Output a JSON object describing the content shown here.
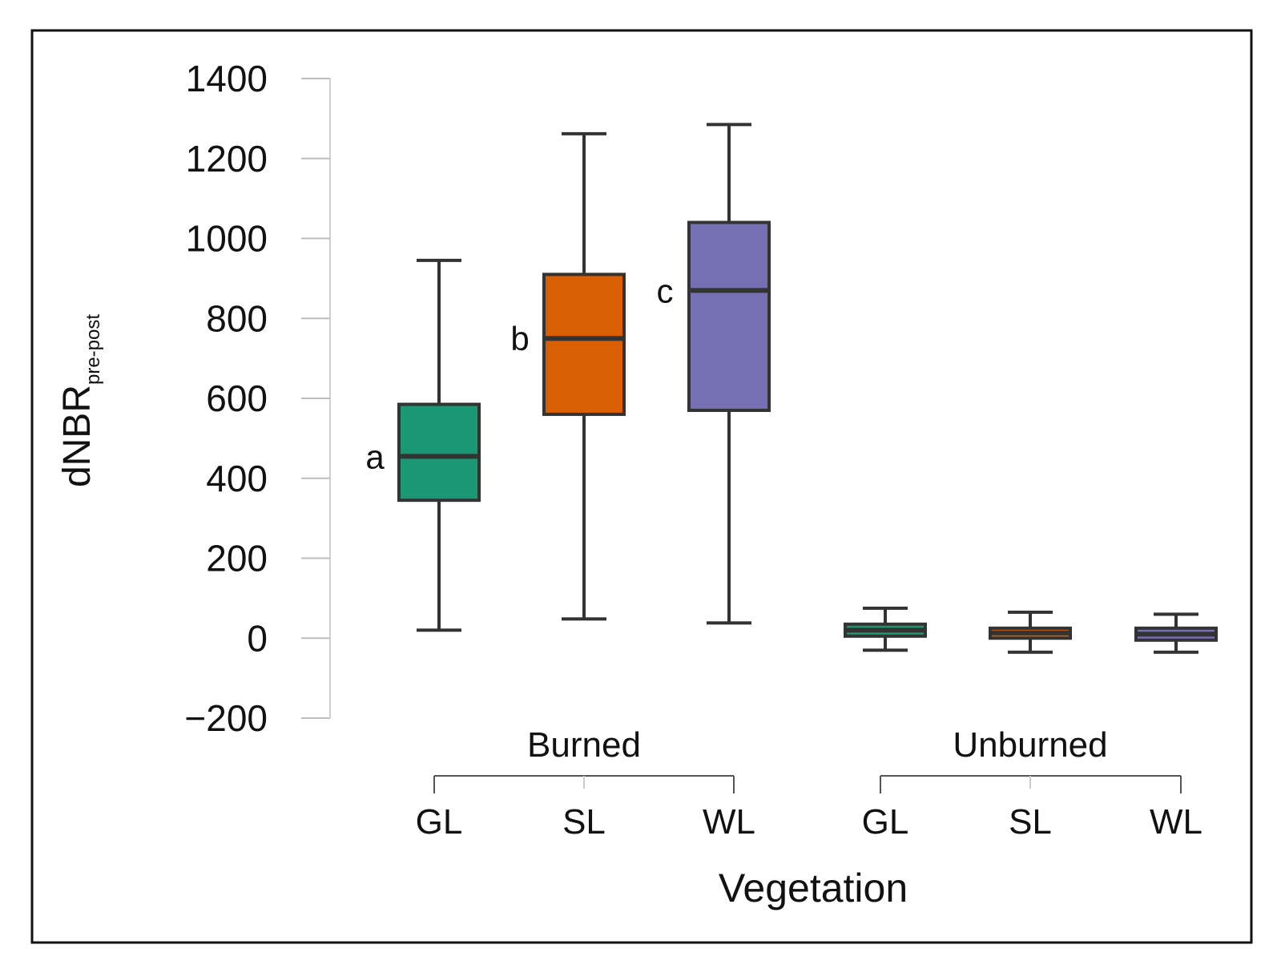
{
  "chart_data": {
    "type": "box",
    "title": "",
    "ylabel": "dNBR",
    "ylabel_subscript": "pre-post",
    "xlabel": "Vegetation",
    "ylim": [
      -200,
      1400
    ],
    "yticks": [
      -200,
      0,
      200,
      400,
      600,
      800,
      1000,
      1200,
      1400
    ],
    "ytick_labels": [
      "−200",
      "0",
      "200",
      "400",
      "600",
      "800",
      "1000",
      "1200",
      "1400"
    ],
    "groups": [
      {
        "name": "Burned",
        "categories": [
          "GL",
          "SL",
          "WL"
        ]
      },
      {
        "name": "Unburned",
        "categories": [
          "GL",
          "SL",
          "WL"
        ]
      }
    ],
    "series": [
      {
        "group": "Burned",
        "category": "GL",
        "color": "#1a9773",
        "whisker_low": 20,
        "q1": 345,
        "median": 455,
        "q3": 585,
        "whisker_high": 945,
        "label": "a"
      },
      {
        "group": "Burned",
        "category": "SL",
        "color": "#d95f02",
        "whisker_low": 48,
        "q1": 560,
        "median": 750,
        "q3": 910,
        "whisker_high": 1262,
        "label": "b"
      },
      {
        "group": "Burned",
        "category": "WL",
        "color": "#7570b3",
        "whisker_low": 38,
        "q1": 570,
        "median": 870,
        "q3": 1040,
        "whisker_high": 1285,
        "label": "c"
      },
      {
        "group": "Unburned",
        "category": "GL",
        "color": "#1a9773",
        "whisker_low": -30,
        "q1": 5,
        "median": 20,
        "q3": 35,
        "whisker_high": 75,
        "label": ""
      },
      {
        "group": "Unburned",
        "category": "SL",
        "color": "#d95f02",
        "whisker_low": -35,
        "q1": 0,
        "median": 13,
        "q3": 25,
        "whisker_high": 65,
        "label": ""
      },
      {
        "group": "Unburned",
        "category": "WL",
        "color": "#7570b3",
        "whisker_low": -35,
        "q1": -5,
        "median": 10,
        "q3": 25,
        "whisker_high": 60,
        "label": ""
      }
    ]
  }
}
